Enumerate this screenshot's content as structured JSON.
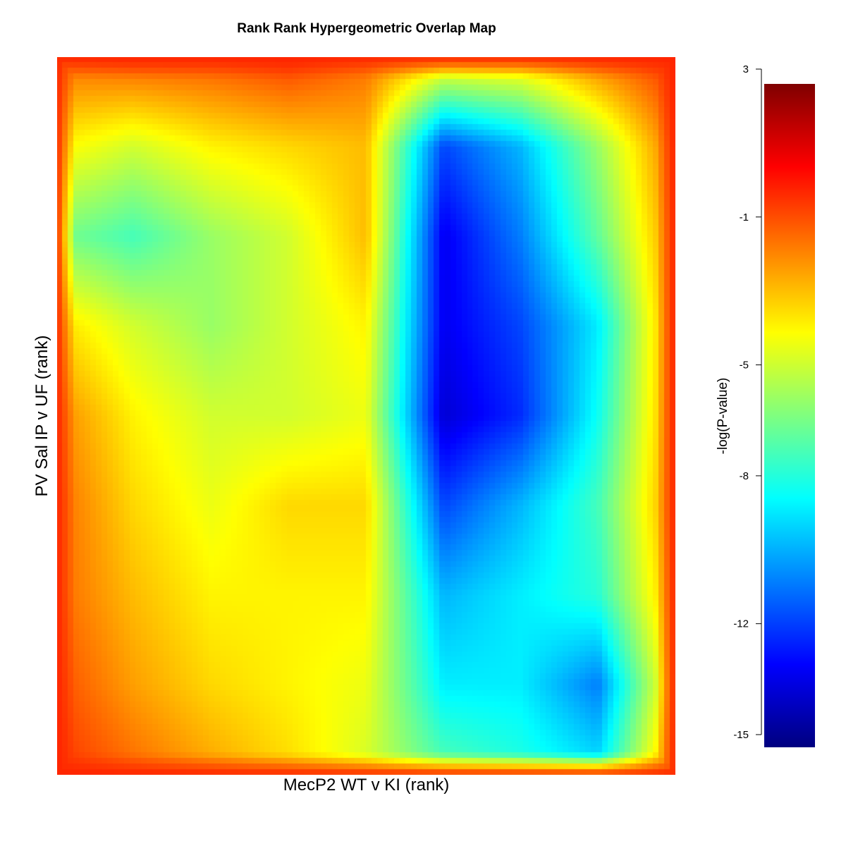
{
  "chart_data": {
    "type": "heatmap",
    "title": "Rank Rank Hypergeometric Overlap Map",
    "xlabel": "MecP2  WT v KI (rank)",
    "ylabel": "PV Sal IP v UF (rank)",
    "colorbar": {
      "label": "-log(P-value)",
      "range": [
        -15.5,
        2.6
      ],
      "ticks": [
        3,
        -1,
        -5,
        -8,
        -12,
        -15
      ],
      "tick_labels": [
        "3",
        "-1",
        "-5",
        "-8",
        "-12",
        "-15"
      ],
      "colors": [
        "#00007f",
        "#0000ff",
        "#007fff",
        "#00ffff",
        "#7fff7f",
        "#ffff00",
        "#ff7f00",
        "#ff0000",
        "#7f0000"
      ]
    },
    "x_range": [
      0,
      1
    ],
    "y_range": [
      0,
      1
    ],
    "rows": 9,
    "cols": 9,
    "grid_values": [
      [
        -1.5,
        -1.0,
        -1.0,
        -0.5,
        -1.5,
        -3.0,
        -3.0,
        -1.5,
        -0.5
      ],
      [
        -4.0,
        -5.0,
        -4.0,
        -3.5,
        -3.0,
        -12.0,
        -10.0,
        -6.0,
        -1.5
      ],
      [
        -6.5,
        -7.5,
        -6.0,
        -5.0,
        -3.0,
        -13.5,
        -11.0,
        -7.0,
        -2.0
      ],
      [
        -3.5,
        -5.0,
        -6.0,
        -5.0,
        -4.0,
        -13.5,
        -12.0,
        -9.0,
        -2.0
      ],
      [
        -2.0,
        -4.0,
        -5.0,
        -5.0,
        -4.5,
        -14.0,
        -12.5,
        -8.5,
        -2.0
      ],
      [
        -1.5,
        -3.5,
        -4.5,
        -3.5,
        -3.5,
        -12.0,
        -10.0,
        -7.5,
        -2.0
      ],
      [
        -1.5,
        -3.0,
        -4.0,
        -4.0,
        -4.0,
        -10.0,
        -9.0,
        -8.0,
        -2.5
      ],
      [
        -1.0,
        -2.5,
        -3.5,
        -4.0,
        -4.5,
        -9.0,
        -9.0,
        -11.0,
        -3.0
      ],
      [
        -0.5,
        -1.5,
        -2.5,
        -3.5,
        -5.0,
        -7.0,
        -8.0,
        -9.0,
        -2.0
      ]
    ]
  }
}
